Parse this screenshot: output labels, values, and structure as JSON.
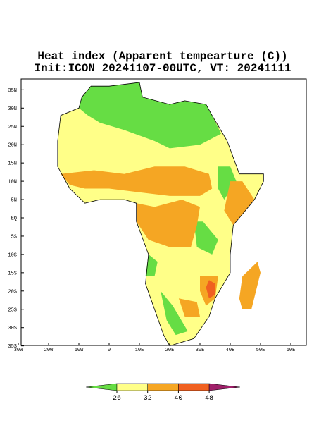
{
  "title": "Heat index (Apparent tempearture (C))",
  "subtitle": "Init:ICON 20241107-00UTC, VT: 20241111",
  "lon_ticks": [
    {
      "value": -30,
      "label": "30W"
    },
    {
      "value": -20,
      "label": "20W"
    },
    {
      "value": -10,
      "label": "10W"
    },
    0,
    {
      "value": 10,
      "label": "10E"
    },
    {
      "value": 20,
      "label": "20E"
    },
    {
      "value": 30,
      "label": "30E"
    },
    {
      "value": 40,
      "label": "40E"
    },
    {
      "value": 50,
      "label": "50E"
    },
    {
      "value": 60,
      "label": "60E"
    }
  ],
  "lat_ticks": [
    {
      "value": 35,
      "label": "35N"
    },
    {
      "value": 30,
      "label": "30N"
    },
    {
      "value": 25,
      "label": "25N"
    },
    {
      "value": 20,
      "label": "20N"
    },
    {
      "value": 15,
      "label": "15N"
    },
    {
      "value": 10,
      "label": "10N"
    },
    {
      "value": 5,
      "label": "5N"
    },
    {
      "value": 0,
      "label": "EQ"
    },
    {
      "value": -5,
      "label": "5S"
    },
    {
      "value": -10,
      "label": "10S"
    },
    {
      "value": -15,
      "label": "15S"
    },
    {
      "value": -20,
      "label": "20S"
    },
    {
      "value": -25,
      "label": "25S"
    },
    {
      "value": -30,
      "label": "30S"
    },
    {
      "value": -35,
      "label": "35S"
    }
  ],
  "colorbar": {
    "ticks": [
      26,
      32,
      40,
      48
    ],
    "colors": [
      "#66dd44",
      "#ffff88",
      "#f5a623",
      "#f06020",
      "#a0206a"
    ]
  }
}
